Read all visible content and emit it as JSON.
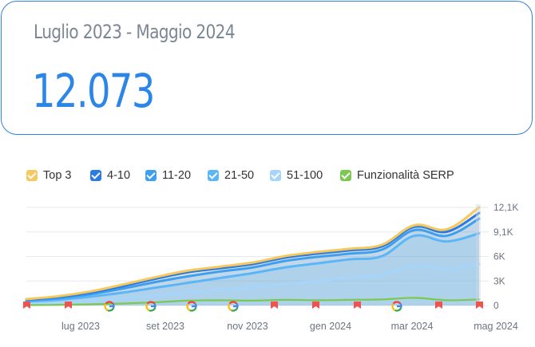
{
  "summary": {
    "period": "Luglio 2023 - Maggio 2024",
    "total": "12.073"
  },
  "legend": [
    {
      "label": "Top 3",
      "color": "#f7c85c"
    },
    {
      "label": "4-10",
      "color": "#2c7be5"
    },
    {
      "label": "11-20",
      "color": "#3d9ff0"
    },
    {
      "label": "21-50",
      "color": "#5ab6f7"
    },
    {
      "label": "51-100",
      "color": "#a6d5fb"
    },
    {
      "label": "Funzionalità SERP",
      "color": "#7bc950"
    }
  ],
  "chart_data": {
    "type": "area",
    "y_ticks": [
      "12,1K",
      "9,1K",
      "6K",
      "3K",
      "0"
    ],
    "ylim": [
      0,
      12100
    ],
    "x_tick_labels": [
      "lug 2023",
      "set 2023",
      "nov 2023",
      "gen 2024",
      "mar 2024",
      "mag 2024"
    ],
    "series": [
      {
        "name": "51-100",
        "color": "#a6d5fb",
        "values": [
          300,
          400,
          600,
          900,
          1200,
          1600,
          1900,
          2300,
          2700,
          3000,
          3400,
          3800,
          4900,
          4500,
          5100
        ]
      },
      {
        "name": "21-50",
        "color": "#5ab6f7",
        "values": [
          500,
          700,
          1100,
          1600,
          2200,
          2800,
          3400,
          4000,
          4700,
          5200,
          5700,
          6100,
          8600,
          7900,
          8900
        ]
      },
      {
        "name": "11-20",
        "color": "#3d9ff0",
        "values": [
          650,
          900,
          1400,
          2100,
          2900,
          3600,
          4200,
          4700,
          5500,
          6000,
          6400,
          6900,
          9300,
          8600,
          10700
        ]
      },
      {
        "name": "4-10",
        "color": "#2c7be5",
        "values": [
          750,
          1050,
          1600,
          2400,
          3300,
          4100,
          4600,
          5100,
          5900,
          6400,
          6800,
          7300,
          9700,
          9100,
          11400
        ]
      },
      {
        "name": "Top 3",
        "color": "#f7c85c",
        "values": [
          800,
          1150,
          1750,
          2600,
          3500,
          4300,
          4800,
          5300,
          6100,
          6600,
          7000,
          7500,
          9900,
          9400,
          12100
        ]
      },
      {
        "name": "Funzionalità SERP",
        "color": "#7bc950",
        "values": [
          50,
          80,
          150,
          250,
          400,
          600,
          650,
          600,
          700,
          650,
          700,
          750,
          950,
          650,
          750
        ]
      }
    ],
    "events": [
      {
        "type": "flag",
        "color": "#ef5350"
      },
      {
        "type": "flag",
        "color": "#ef5350"
      },
      {
        "type": "google"
      },
      {
        "type": "google"
      },
      {
        "type": "google"
      },
      {
        "type": "google"
      },
      {
        "type": "flag",
        "color": "#ef5350"
      },
      {
        "type": "flag",
        "color": "#ef5350"
      },
      {
        "type": "flag",
        "color": "#ef5350"
      },
      {
        "type": "google"
      },
      {
        "type": "flag",
        "color": "#ef5350"
      },
      {
        "type": "flag",
        "color": "#ef5350"
      }
    ]
  }
}
